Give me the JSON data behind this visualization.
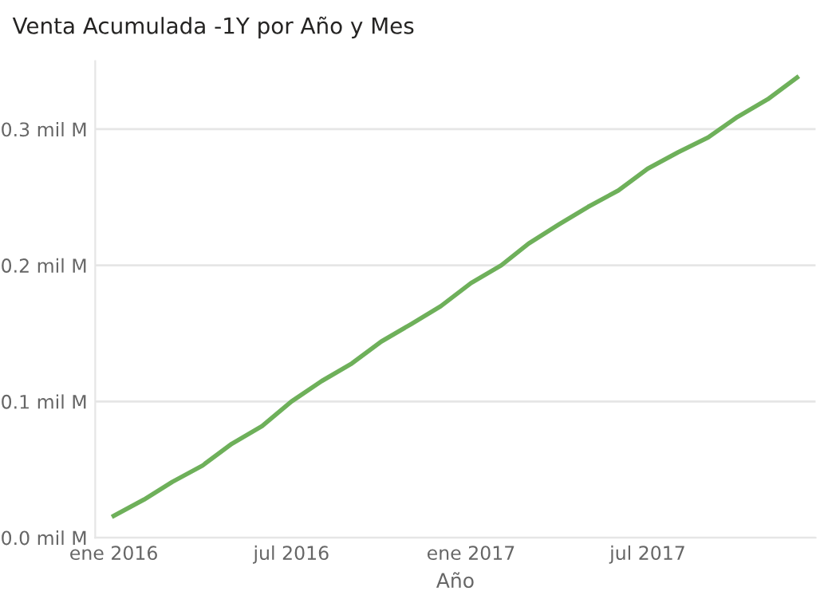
{
  "chart_data": {
    "type": "line",
    "title": "Venta Acumulada -1Y por Año y Mes",
    "xlabel": "Año",
    "x": [
      "2016-01",
      "2016-02",
      "2016-03",
      "2016-04",
      "2016-05",
      "2016-06",
      "2016-07",
      "2016-08",
      "2016-09",
      "2016-10",
      "2016-11",
      "2016-12",
      "2017-01",
      "2017-02",
      "2017-03",
      "2017-04",
      "2017-05",
      "2017-06",
      "2017-07",
      "2017-08",
      "2017-09",
      "2017-10",
      "2017-11",
      "2017-12"
    ],
    "series": [
      {
        "color": "#6eb05a",
        "values": [
          0.016,
          0.028,
          0.041,
          0.053,
          0.069,
          0.082,
          0.1,
          0.115,
          0.128,
          0.144,
          0.157,
          0.17,
          0.187,
          0.2,
          0.216,
          0.23,
          0.243,
          0.255,
          0.271,
          0.283,
          0.294,
          0.309,
          0.322,
          0.338
        ]
      }
    ],
    "xlim": [
      "2015-12-13",
      "2017-12-20"
    ],
    "xticks": [
      {
        "value": "2016-01",
        "label": "ene 2016"
      },
      {
        "value": "2016-07",
        "label": "jul 2016"
      },
      {
        "value": "2017-01",
        "label": "ene 2017"
      },
      {
        "value": "2017-07",
        "label": "jul 2017"
      }
    ],
    "ylim": [
      0,
      0.35
    ],
    "yticks": [
      {
        "value": 0,
        "label": "0.0 mil M"
      },
      {
        "value": 0.1,
        "label": "0.1 mil M"
      },
      {
        "value": 0.2,
        "label": "0.2 mil M"
      },
      {
        "value": 0.3,
        "label": "0.3 mil M"
      }
    ],
    "grid": "y",
    "legend": false,
    "marker": "none",
    "line_style": "solid"
  }
}
